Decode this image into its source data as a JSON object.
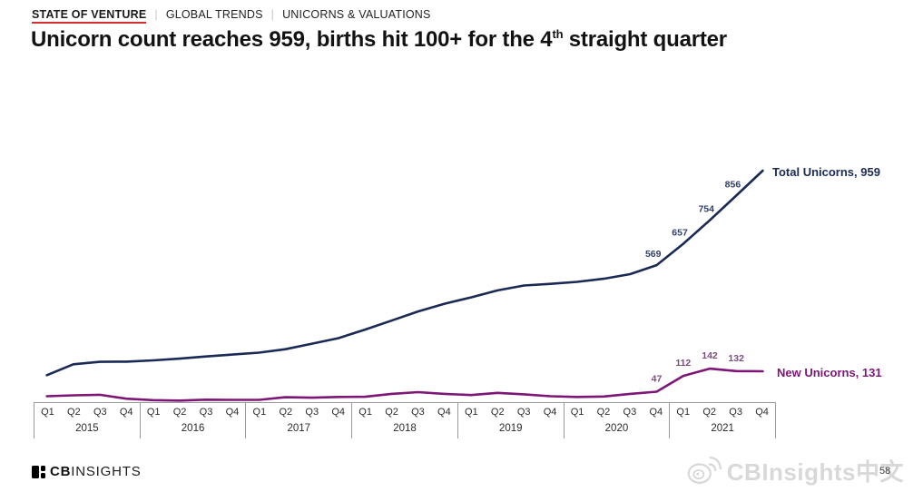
{
  "breadcrumb": {
    "section": "STATE OF VENTURE",
    "separator": "|",
    "item1": "GLOBAL TRENDS",
    "item2": "UNICORNS & VALUATIONS"
  },
  "title": {
    "pre": "Unicorn count reaches 959, births hit 100+ for the 4",
    "sup": "th",
    "post": " straight quarter"
  },
  "chart_data": {
    "type": "line",
    "title": "Unicorn count reaches 959, births hit 100+ for the 4th straight quarter",
    "xlabel": "",
    "ylabel": "",
    "ylim": [
      0,
      1000
    ],
    "grid": false,
    "legend_position": "right-of-line-end",
    "years": [
      {
        "label": "2015",
        "quarters": [
          "Q1",
          "Q2",
          "Q3",
          "Q4"
        ]
      },
      {
        "label": "2016",
        "quarters": [
          "Q1",
          "Q2",
          "Q3",
          "Q4"
        ]
      },
      {
        "label": "2017",
        "quarters": [
          "Q1",
          "Q2",
          "Q3",
          "Q4"
        ]
      },
      {
        "label": "2018",
        "quarters": [
          "Q1",
          "Q2",
          "Q3",
          "Q4"
        ]
      },
      {
        "label": "2019",
        "quarters": [
          "Q1",
          "Q2",
          "Q3",
          "Q4"
        ]
      },
      {
        "label": "2020",
        "quarters": [
          "Q1",
          "Q2",
          "Q3",
          "Q4"
        ]
      },
      {
        "label": "2021",
        "quarters": [
          "Q1",
          "Q2",
          "Q3",
          "Q4"
        ]
      }
    ],
    "series": [
      {
        "name": "Total Unicorns",
        "label": "Total Unicorns, 959",
        "color": "#1b2a55",
        "label_color": "#33406b",
        "values": [
          115,
          160,
          170,
          171,
          176,
          183,
          192,
          200,
          208,
          222,
          245,
          268,
          303,
          340,
          378,
          410,
          436,
          465,
          485,
          492,
          500,
          513,
          532,
          569,
          657,
          754,
          856,
          959
        ],
        "point_labels": {
          "23": "569",
          "24": "657",
          "25": "754",
          "26": "856"
        }
      },
      {
        "name": "New Unicorns",
        "label": "New Unicorns, 131",
        "color": "#7d1677",
        "label_color": "#7c4b82",
        "values": [
          28,
          32,
          34,
          18,
          12,
          10,
          14,
          13,
          13,
          24,
          22,
          25,
          26,
          38,
          45,
          38,
          33,
          42,
          36,
          28,
          25,
          27,
          38,
          47,
          112,
          142,
          132,
          131
        ],
        "point_labels": {
          "23": "47",
          "24": "112",
          "25": "142",
          "26": "132"
        }
      }
    ]
  },
  "footer": {
    "logo_bold": "CB",
    "logo_light": "INSIGHTS",
    "watermark_text": "CBInsights中文",
    "page_number": "58"
  }
}
